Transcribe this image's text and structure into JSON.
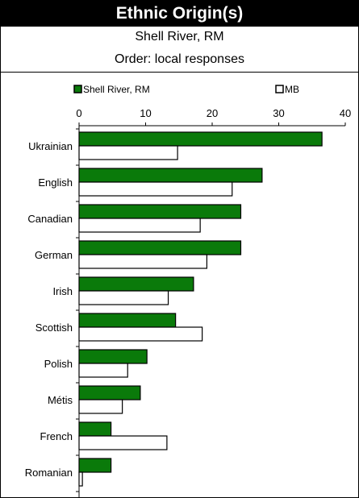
{
  "header": {
    "title": "Ethnic Origin(s)",
    "subtitle": "Shell River, RM",
    "order": "Order: local responses"
  },
  "colors": {
    "series1": "#0a7a0a",
    "series2": "#ffffff",
    "stroke": "#000000"
  },
  "chart_data": {
    "type": "bar",
    "orientation": "horizontal",
    "xlim": [
      0,
      40
    ],
    "xticks": [
      0,
      10,
      20,
      30,
      40
    ],
    "categories": [
      "Ukrainian",
      "English",
      "Canadian",
      "German",
      "Irish",
      "Scottish",
      "Polish",
      "Métis",
      "French",
      "Romanian"
    ],
    "series": [
      {
        "name": "Shell River, RM",
        "values": [
          36.5,
          27.5,
          24.3,
          24.3,
          17.2,
          14.5,
          10.2,
          9.2,
          4.8,
          4.8
        ]
      },
      {
        "name": "MB",
        "values": [
          14.8,
          23.0,
          18.2,
          19.2,
          13.4,
          18.5,
          7.3,
          6.5,
          13.2,
          0.5
        ]
      }
    ],
    "legend_position": "top",
    "grid": false
  }
}
